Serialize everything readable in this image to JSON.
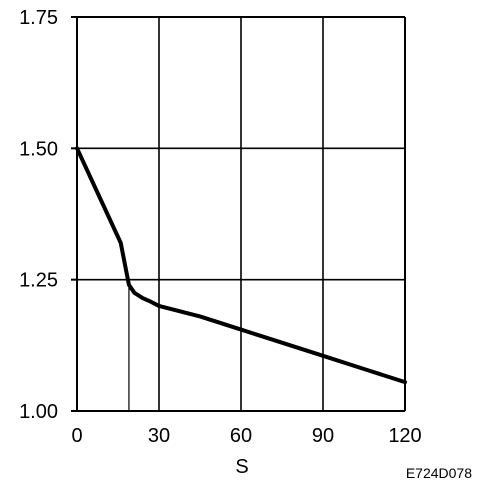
{
  "chart_data": {
    "type": "line",
    "title": "",
    "xlabel": "S",
    "ylabel": "",
    "x_ticks": [
      "0",
      "30",
      "60",
      "90",
      "120"
    ],
    "y_ticks": [
      "1.00",
      "1.25",
      "1.50",
      "1.75"
    ],
    "xlim": [
      0,
      120
    ],
    "ylim": [
      1.0,
      1.75
    ],
    "grid": true,
    "reference_line_x": 19,
    "series": [
      {
        "x": [
          0,
          8,
          16,
          19,
          21,
          24,
          27,
          30,
          45,
          60,
          75,
          90,
          105,
          120
        ],
        "y": [
          1.5,
          1.41,
          1.32,
          1.24,
          1.225,
          1.215,
          1.208,
          1.2,
          1.18,
          1.155,
          1.13,
          1.105,
          1.08,
          1.055
        ]
      }
    ]
  },
  "figure_code": "E724D078"
}
